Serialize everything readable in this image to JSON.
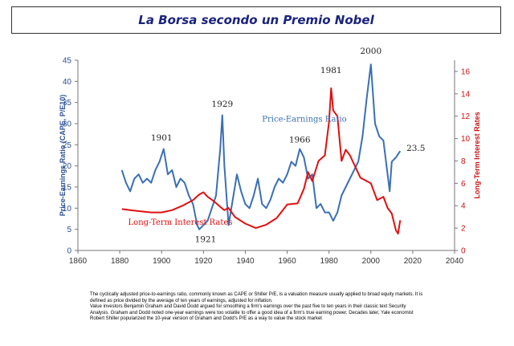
{
  "header": {
    "title": "La Borsa secondo un Premio Nobel"
  },
  "chart_data": {
    "type": "line",
    "title": "",
    "xlabel": "",
    "ylabel": "Price-Earnings Ratio (CAPE, P/E10)",
    "y2label": "Long-Term Interest Rates",
    "xlim": [
      1860,
      2040
    ],
    "xticks": [
      "1860",
      "1880",
      "1900",
      "1920",
      "1940",
      "1960",
      "1980",
      "2000",
      "2020",
      "2040"
    ],
    "ylim": [
      0,
      45
    ],
    "yticks": [
      "0",
      "5",
      "10",
      "15",
      "20",
      "25",
      "30",
      "35",
      "40",
      "45"
    ],
    "y2lim": [
      0,
      17
    ],
    "y2ticks": [
      "0",
      "2",
      "4",
      "6",
      "8",
      "10",
      "12",
      "14",
      "16"
    ],
    "grid": false,
    "colors": {
      "pe": "#3a6fb6",
      "rate": "#e01010",
      "left_axis": "#2a4f9a",
      "right_axis": "#cc1111"
    },
    "series": [
      {
        "name": "Price-Earnings Ratio",
        "axis": "left",
        "x": [
          1881,
          1883,
          1885,
          1887,
          1889,
          1891,
          1893,
          1895,
          1897,
          1899,
          1901,
          1903,
          1905,
          1907,
          1909,
          1911,
          1913,
          1915,
          1917,
          1918,
          1920,
          1922,
          1924,
          1926,
          1928,
          1929,
          1930,
          1932,
          1934,
          1936,
          1938,
          1940,
          1942,
          1944,
          1946,
          1948,
          1950,
          1952,
          1954,
          1956,
          1958,
          1960,
          1962,
          1964,
          1966,
          1968,
          1970,
          1972,
          1974,
          1976,
          1978,
          1980,
          1982,
          1984,
          1986,
          1988,
          1990,
          1992,
          1994,
          1996,
          1998,
          2000,
          2002,
          2004,
          2006,
          2008,
          2009,
          2010,
          2012,
          2014
        ],
        "values": [
          19,
          16,
          14,
          17,
          18,
          16,
          17,
          16,
          19,
          21,
          24,
          18,
          19,
          15,
          17,
          16,
          13,
          11,
          6,
          5,
          6,
          7,
          10,
          13,
          24,
          32,
          20,
          6,
          12,
          18,
          14,
          11,
          10,
          13,
          17,
          11,
          10,
          12,
          15,
          17,
          16,
          18,
          21,
          20,
          24,
          22,
          17,
          18,
          10,
          11,
          9,
          9,
          7,
          9,
          13,
          15,
          17,
          19,
          21,
          27,
          36,
          44,
          30,
          27,
          26,
          18,
          14,
          21,
          22,
          23.5
        ]
      },
      {
        "name": "Long-Term Interest Rates",
        "axis": "right",
        "x": [
          1881,
          1885,
          1890,
          1895,
          1900,
          1905,
          1910,
          1915,
          1918,
          1920,
          1922,
          1925,
          1928,
          1930,
          1932,
          1935,
          1940,
          1945,
          1950,
          1955,
          1960,
          1965,
          1968,
          1970,
          1972,
          1975,
          1978,
          1980,
          1981,
          1982,
          1984,
          1986,
          1988,
          1990,
          1995,
          2000,
          2003,
          2006,
          2008,
          2010,
          2012,
          2013,
          2014
        ],
        "values": [
          3.7,
          3.6,
          3.5,
          3.4,
          3.4,
          3.6,
          4.0,
          4.5,
          5.0,
          5.2,
          4.8,
          4.4,
          3.9,
          3.6,
          3.8,
          3.0,
          2.4,
          2.0,
          2.3,
          2.9,
          4.1,
          4.2,
          5.5,
          7.0,
          6.2,
          8.0,
          8.5,
          11.5,
          14.5,
          12.5,
          12.0,
          8.0,
          9.0,
          8.5,
          6.5,
          6.0,
          4.5,
          4.8,
          3.8,
          3.3,
          1.8,
          1.5,
          2.7
        ]
      }
    ],
    "annotations": [
      {
        "text": "1901",
        "x": 1900,
        "y": 26
      },
      {
        "text": "1929",
        "x": 1929,
        "y": 34
      },
      {
        "text": "1921",
        "x": 1921,
        "y": 2
      },
      {
        "text": "1966",
        "x": 1966,
        "y": 25.5
      },
      {
        "text": "1981",
        "x": 1981,
        "y": 42
      },
      {
        "text": "2000",
        "x": 2000,
        "y": 46.5
      },
      {
        "text": "23.5",
        "x": 2017,
        "y": 23.5
      },
      {
        "text": "Price-Earnings Ratio",
        "x": 1948,
        "y": 30.5
      },
      {
        "text": "Long-Term Interest Rates",
        "x": 1884,
        "y": 6.1
      }
    ]
  },
  "description": {
    "paragraphs": [
      "The cyclically adjusted price-to-earnings ratio, commonly known as CAPE or Shiller P/E, is a valuation measure usually applied to broad equity markets. It is defined as price divided by the average of ten years of earnings, adjusted for inflation.",
      "Value investors Benjamin Graham and David Dodd argued for smoothing a firm's earnings over the past five to ten years in their classic text Security Analysis. Graham and Dodd noted one-year earnings were too volatile to offer a good idea of a firm's true earning power. Decades later, Yale economist Robert Shiller popularized the 10-year version of Graham and Dodd's P/E as a way to value the stock market"
    ]
  }
}
